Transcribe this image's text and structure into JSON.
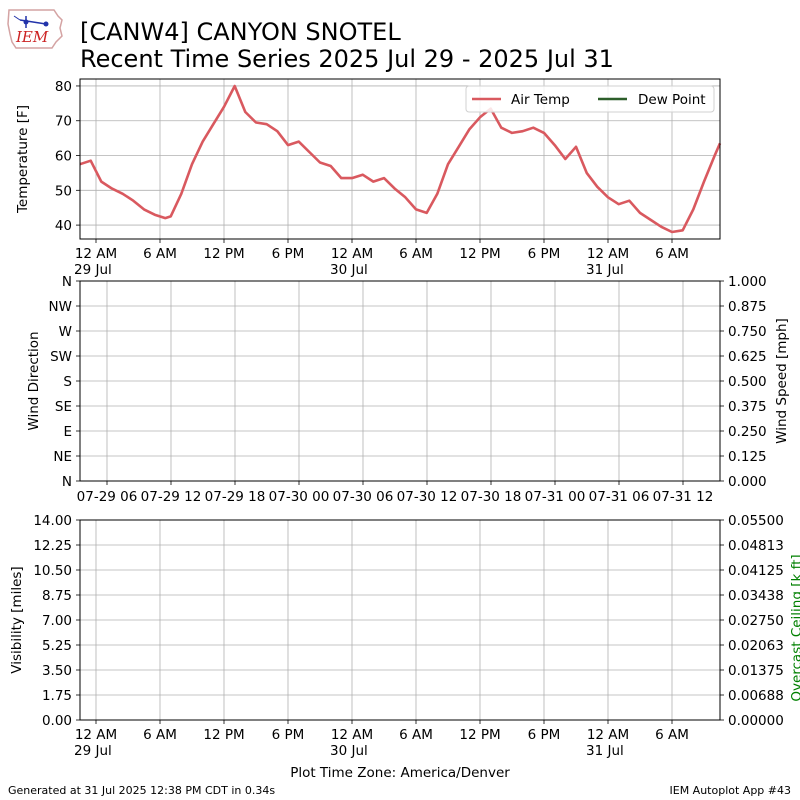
{
  "header": {
    "logo_text": "IEM",
    "title_line1": "[CANW4] CANYON SNOTEL",
    "title_line2": "Recent Time Series 2025 Jul 29 - 2025 Jul 31"
  },
  "footer": {
    "generated": "Generated at 31 Jul 2025 12:38 PM CDT in 0.34s",
    "app": "IEM Autoplot App #43",
    "timezone_label": "Plot Time Zone: America/Denver"
  },
  "colors": {
    "air_temp": "#d9595f",
    "dew_point": "#2d5e2a",
    "ceiling_label": "#008000"
  },
  "chart_data": [
    {
      "type": "line",
      "ylabel": "Temperature [F]",
      "ylim": [
        36,
        82
      ],
      "yticks": [
        "40",
        "50",
        "60",
        "70",
        "80"
      ],
      "grid": true,
      "legend": "top-right",
      "xlim_hours": [
        -1.5,
        58.5
      ],
      "xticks": [
        {
          "h": 0,
          "label": "12 AM",
          "label2": "29 Jul"
        },
        {
          "h": 6,
          "label": "6 AM",
          "label2": ""
        },
        {
          "h": 12,
          "label": "12 PM",
          "label2": ""
        },
        {
          "h": 18,
          "label": "6 PM",
          "label2": ""
        },
        {
          "h": 24,
          "label": "12 AM",
          "label2": "30 Jul"
        },
        {
          "h": 30,
          "label": "6 AM",
          "label2": ""
        },
        {
          "h": 36,
          "label": "12 PM",
          "label2": ""
        },
        {
          "h": 42,
          "label": "6 PM",
          "label2": ""
        },
        {
          "h": 48,
          "label": "12 AM",
          "label2": "31 Jul"
        },
        {
          "h": 54,
          "label": "6 AM",
          "label2": ""
        }
      ],
      "series": [
        {
          "name": "Air Temp",
          "x": [
            -1.5,
            -0.5,
            0.5,
            1.5,
            2.5,
            3.5,
            4.5,
            5.5,
            6.5,
            7.0,
            8.0,
            9.0,
            10.0,
            11.0,
            12.0,
            13.0,
            14.0,
            15.0,
            16.0,
            17.0,
            18.0,
            19.0,
            20.0,
            21.0,
            22.0,
            23.0,
            24.0,
            25.0,
            26.0,
            27.0,
            28.0,
            29.0,
            30.0,
            31.0,
            32.0,
            33.0,
            34.0,
            35.0,
            36.0,
            37.0,
            38.0,
            39.0,
            40.0,
            41.0,
            42.0,
            43.0,
            44.0,
            45.0,
            46.0,
            47.0,
            48.0,
            49.0,
            50.0,
            51.0,
            52.0,
            53.0,
            54.0,
            55.0,
            56.0,
            57.0,
            58.0,
            58.5
          ],
          "values": [
            57.5,
            58.5,
            52.5,
            50.5,
            49.0,
            47.0,
            44.5,
            43.0,
            42.0,
            42.5,
            49.0,
            57.5,
            64.0,
            69.0,
            74.0,
            80.0,
            72.5,
            69.5,
            69.0,
            67.0,
            63.0,
            64.0,
            61.0,
            58.0,
            57.0,
            53.5,
            53.5,
            54.5,
            52.5,
            53.5,
            50.5,
            48.0,
            44.5,
            43.5,
            49.0,
            57.5,
            62.5,
            67.5,
            71.0,
            73.5,
            68.0,
            66.5,
            67.0,
            68.0,
            66.5,
            63.0,
            59.0,
            62.5,
            55.0,
            51.0,
            48.0,
            46.0,
            47.0,
            43.5,
            41.5,
            39.5,
            38.0,
            38.5,
            44.5,
            52.5,
            60.0,
            63.5
          ]
        },
        {
          "name": "Dew Point",
          "x": [],
          "values": []
        }
      ]
    },
    {
      "type": "line",
      "ylabel": "Wind Direction",
      "ylabel_right": "Wind Speed [mph]",
      "yticks": [
        "N",
        "NE",
        "E",
        "SE",
        "S",
        "SW",
        "W",
        "NW",
        "N"
      ],
      "yticks_right": [
        "0.000",
        "0.125",
        "0.250",
        "0.375",
        "0.500",
        "0.625",
        "0.750",
        "0.875",
        "1.000"
      ],
      "grid": true,
      "xticks": [
        "07-29 06",
        "07-29 12",
        "07-29 18",
        "07-30 00",
        "07-30 06",
        "07-30 12",
        "07-30 18",
        "07-31 00",
        "07-31 06",
        "07-31 12"
      ],
      "series": []
    },
    {
      "type": "line",
      "ylabel": "Visibility [miles]",
      "ylabel_right": "Overcast Ceiling [k ft]",
      "ylim": [
        0,
        14
      ],
      "yticks": [
        "0.00",
        "1.75",
        "3.50",
        "5.25",
        "7.00",
        "8.75",
        "10.50",
        "12.25",
        "14.00"
      ],
      "yticks_right": [
        "0.00000",
        "0.00688",
        "0.01375",
        "0.02063",
        "0.02750",
        "0.03438",
        "0.04125",
        "0.04813",
        "0.05500"
      ],
      "grid": true,
      "xticks": [
        {
          "h": 0,
          "label": "12 AM",
          "label2": "29 Jul"
        },
        {
          "h": 6,
          "label": "6 AM",
          "label2": ""
        },
        {
          "h": 12,
          "label": "12 PM",
          "label2": ""
        },
        {
          "h": 18,
          "label": "6 PM",
          "label2": ""
        },
        {
          "h": 24,
          "label": "12 AM",
          "label2": "30 Jul"
        },
        {
          "h": 30,
          "label": "6 AM",
          "label2": ""
        },
        {
          "h": 36,
          "label": "12 PM",
          "label2": ""
        },
        {
          "h": 42,
          "label": "6 PM",
          "label2": ""
        },
        {
          "h": 48,
          "label": "12 AM",
          "label2": "31 Jul"
        },
        {
          "h": 54,
          "label": "6 AM",
          "label2": ""
        }
      ],
      "series": []
    }
  ]
}
